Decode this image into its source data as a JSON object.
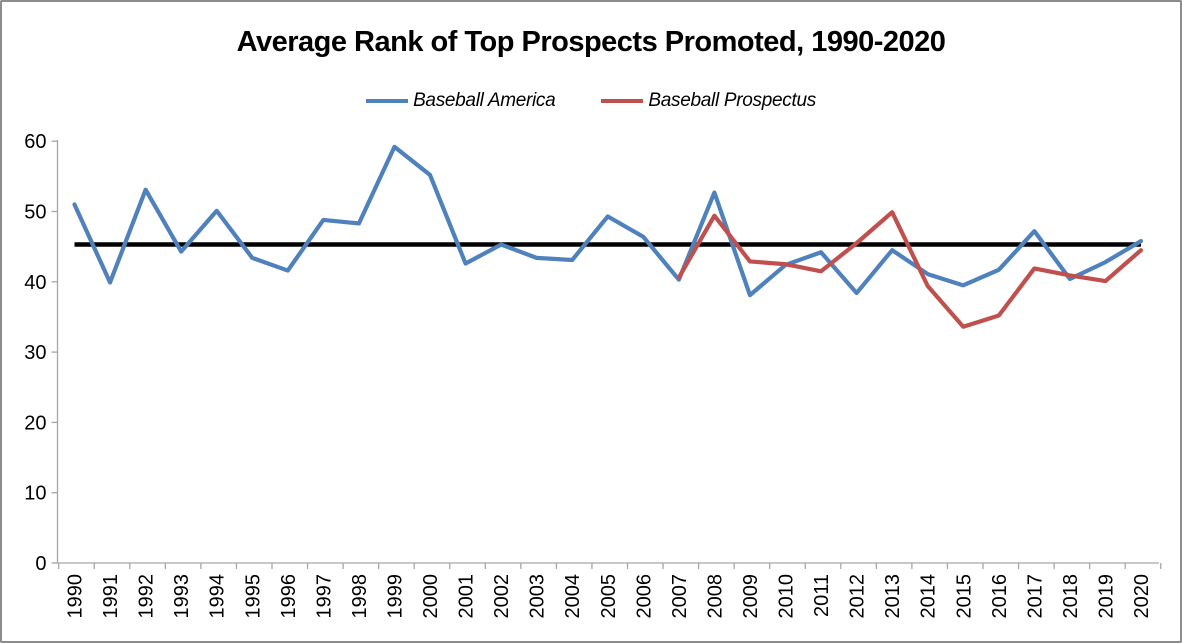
{
  "window": {
    "background_color": "#ffffff",
    "border_color": "#8c8c8c"
  },
  "chart_data": {
    "type": "line",
    "title": "Average Rank of Top Prospects Promoted, 1990-2020",
    "categories": [
      "1990",
      "1991",
      "1992",
      "1993",
      "1994",
      "1995",
      "1996",
      "1997",
      "1998",
      "1999",
      "2000",
      "2001",
      "2002",
      "2003",
      "2004",
      "2005",
      "2006",
      "2007",
      "2008",
      "2009",
      "2010",
      "2011",
      "2012",
      "2013",
      "2014",
      "2015",
      "2016",
      "2017",
      "2018",
      "2019",
      "2020"
    ],
    "series": [
      {
        "name": "Baseball America",
        "color": "#4F81BD",
        "values": [
          51.0,
          39.9,
          53.1,
          44.3,
          50.1,
          43.4,
          41.6,
          48.8,
          48.3,
          59.2,
          55.2,
          42.6,
          45.3,
          43.4,
          43.1,
          49.3,
          46.4,
          40.3,
          52.7,
          38.1,
          42.4,
          44.2,
          38.4,
          44.5,
          41.1,
          39.5,
          41.7,
          47.2,
          40.4,
          42.8,
          45.8
        ]
      },
      {
        "name": "Baseball Prospectus",
        "color": "#C0504D",
        "values": [
          null,
          null,
          null,
          null,
          null,
          null,
          null,
          null,
          null,
          null,
          null,
          null,
          null,
          null,
          null,
          null,
          null,
          40.6,
          49.4,
          42.9,
          42.5,
          41.5,
          45.5,
          49.9,
          39.4,
          33.6,
          35.2,
          41.9,
          40.9,
          40.1,
          44.5
        ]
      }
    ],
    "reference_line": {
      "value": 45.3,
      "color": "#000000"
    },
    "y_axis": {
      "min": 0,
      "max": 60,
      "ticks": [
        0,
        10,
        20,
        30,
        40,
        50,
        60
      ]
    },
    "x_axis": {
      "tick_label_rotation": -90
    },
    "axis_color": "#A6A6A6",
    "tick_label_color": "#000000",
    "grid": false,
    "legend_position": "top-center"
  }
}
